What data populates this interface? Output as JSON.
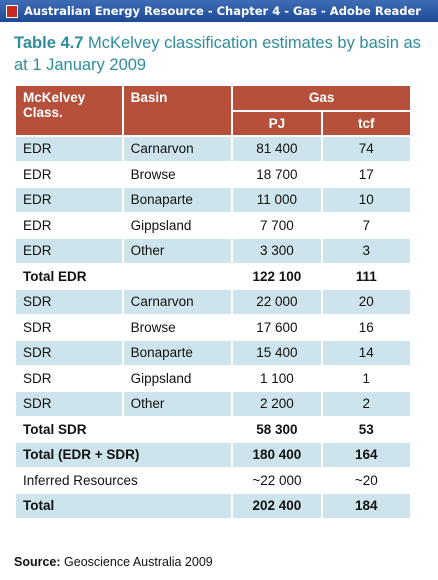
{
  "window": {
    "title": "Australian Energy Resource - Chapter 4 - Gas - Adobe Reader"
  },
  "table": {
    "label": "Table 4.7",
    "caption": "McKelvey classification estimates by basin as at 1 January 2009",
    "header": {
      "class": "McKelvey Class.",
      "basin": "Basin",
      "group": "Gas",
      "pj": "PJ",
      "tcf": "tcf"
    },
    "rows": [
      {
        "cells": [
          "EDR",
          "Carnarvon",
          "81 400",
          "74"
        ]
      },
      {
        "cells": [
          "EDR",
          "Browse",
          "18 700",
          "17"
        ]
      },
      {
        "cells": [
          "EDR",
          "Bonaparte",
          "11 000",
          "10"
        ]
      },
      {
        "cells": [
          "EDR",
          "Gippsland",
          "7 700",
          "7"
        ]
      },
      {
        "cells": [
          "EDR",
          "Other",
          "3 300",
          "3"
        ]
      },
      {
        "cells": [
          "Total EDR",
          "122 100",
          "111"
        ],
        "total": true
      },
      {
        "cells": [
          "SDR",
          "Carnarvon",
          "22 000",
          "20"
        ]
      },
      {
        "cells": [
          "SDR",
          "Browse",
          "17 600",
          "16"
        ]
      },
      {
        "cells": [
          "SDR",
          "Bonaparte",
          "15 400",
          "14"
        ]
      },
      {
        "cells": [
          "SDR",
          "Gippsland",
          "1 100",
          "1"
        ]
      },
      {
        "cells": [
          "SDR",
          "Other",
          "2 200",
          "2"
        ]
      },
      {
        "cells": [
          "Total SDR",
          "58 300",
          "53"
        ],
        "total": true
      },
      {
        "cells": [
          "Total (EDR + SDR)",
          "180 400",
          "164"
        ],
        "total": true
      },
      {
        "cells": [
          "Inferred Resources",
          "~22 000",
          "~20"
        ],
        "merged": true
      },
      {
        "cells": [
          "Total",
          "202 400",
          "184"
        ],
        "total": true
      }
    ],
    "source": {
      "label": "Source:",
      "text": "Geoscience Australia 2009"
    }
  }
}
